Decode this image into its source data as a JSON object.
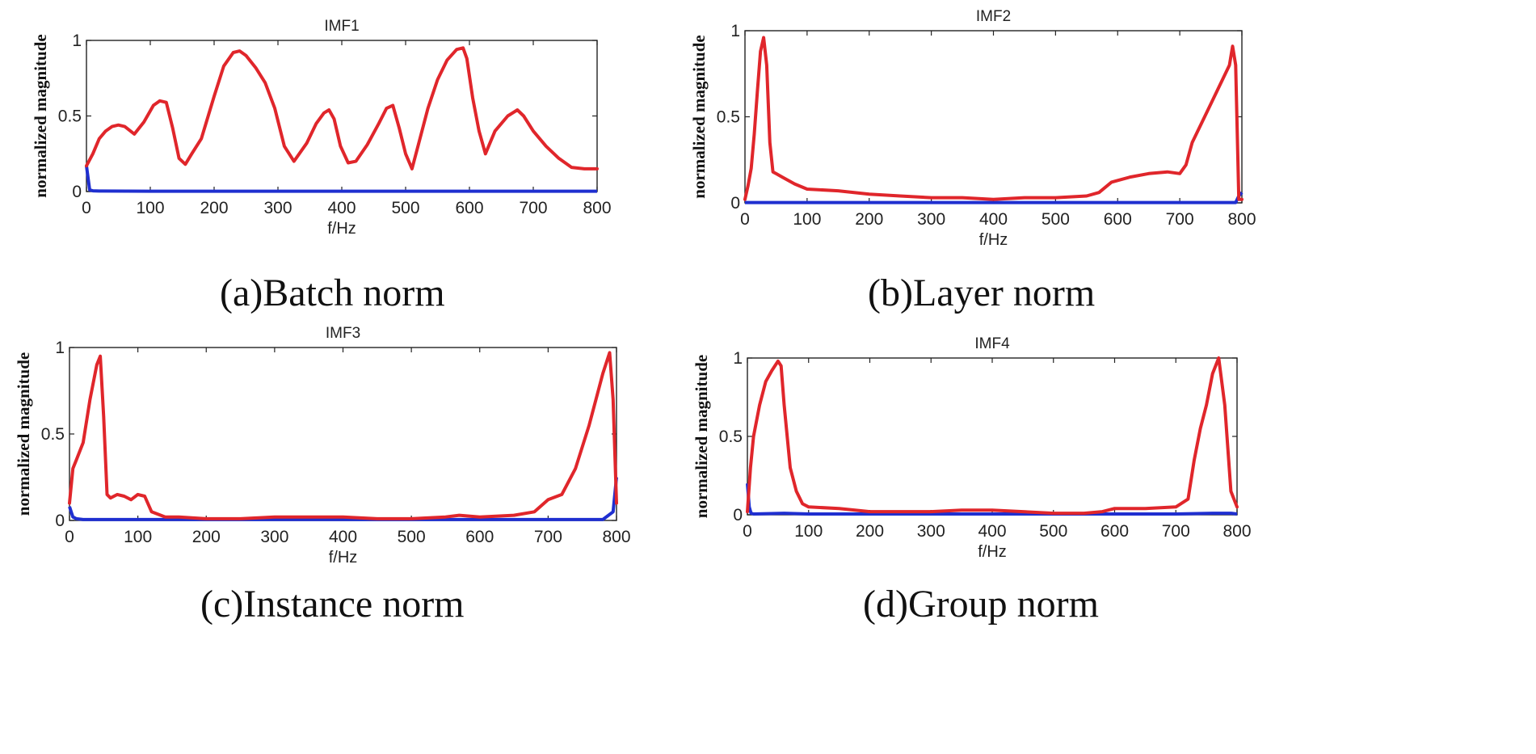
{
  "chart_data": [
    {
      "type": "line",
      "title": "IMF1",
      "caption": "(a)Batch norm",
      "xlabel": "f/Hz",
      "ylabel": "normalized magnitude",
      "xlim": [
        0,
        800
      ],
      "ylim": [
        0,
        1
      ],
      "xticks": [
        "0",
        "100",
        "200",
        "300",
        "400",
        "500",
        "600",
        "700",
        "800"
      ],
      "yticks": [
        "0",
        "0.5",
        "1"
      ],
      "series": [
        {
          "color": "#e0262b",
          "x": [
            0,
            10,
            20,
            30,
            40,
            50,
            60,
            75,
            90,
            105,
            115,
            125,
            135,
            145,
            155,
            165,
            180,
            200,
            215,
            230,
            240,
            250,
            265,
            280,
            295,
            310,
            325,
            345,
            360,
            372,
            380,
            388,
            398,
            410,
            422,
            440,
            458,
            470,
            480,
            490,
            500,
            510,
            520,
            535,
            550,
            565,
            580,
            590,
            596,
            605,
            615,
            625,
            640,
            660,
            675,
            685,
            700,
            720,
            740,
            760,
            780,
            800
          ],
          "y": [
            0.17,
            0.25,
            0.35,
            0.4,
            0.43,
            0.44,
            0.43,
            0.38,
            0.46,
            0.57,
            0.6,
            0.59,
            0.42,
            0.22,
            0.18,
            0.25,
            0.35,
            0.63,
            0.83,
            0.92,
            0.93,
            0.9,
            0.82,
            0.72,
            0.55,
            0.3,
            0.2,
            0.32,
            0.45,
            0.52,
            0.54,
            0.48,
            0.3,
            0.19,
            0.2,
            0.31,
            0.45,
            0.55,
            0.57,
            0.42,
            0.25,
            0.15,
            0.31,
            0.55,
            0.74,
            0.87,
            0.94,
            0.95,
            0.88,
            0.62,
            0.4,
            0.25,
            0.4,
            0.5,
            0.54,
            0.5,
            0.4,
            0.3,
            0.22,
            0.16,
            0.15,
            0.15
          ]
        },
        {
          "color": "#1f2fd0",
          "x": [
            0,
            5,
            10,
            20,
            100,
            200,
            300,
            400,
            500,
            600,
            700,
            790,
            800
          ],
          "y": [
            0.17,
            0.01,
            0.005,
            0.003,
            0.002,
            0.002,
            0.002,
            0.002,
            0.002,
            0.002,
            0.002,
            0.002,
            0.002
          ]
        }
      ]
    },
    {
      "type": "line",
      "title": "IMF2",
      "caption": "(b)Layer norm",
      "xlabel": "f/Hz",
      "ylabel": "normalized magnitude",
      "xlim": [
        0,
        800
      ],
      "ylim": [
        0,
        1
      ],
      "xticks": [
        "0",
        "100",
        "200",
        "300",
        "400",
        "500",
        "600",
        "700",
        "800"
      ],
      "yticks": [
        "0",
        "0.5",
        "1"
      ],
      "series": [
        {
          "color": "#e0262b",
          "x": [
            0,
            5,
            10,
            15,
            20,
            25,
            30,
            35,
            40,
            45,
            50,
            60,
            80,
            100,
            150,
            200,
            250,
            300,
            350,
            400,
            450,
            500,
            550,
            570,
            590,
            600,
            620,
            650,
            680,
            700,
            710,
            720,
            740,
            760,
            780,
            785,
            790,
            795,
            800
          ],
          "y": [
            0.02,
            0.1,
            0.2,
            0.4,
            0.65,
            0.88,
            0.96,
            0.8,
            0.35,
            0.18,
            0.17,
            0.15,
            0.11,
            0.08,
            0.07,
            0.05,
            0.04,
            0.03,
            0.03,
            0.02,
            0.03,
            0.03,
            0.04,
            0.06,
            0.12,
            0.13,
            0.15,
            0.17,
            0.18,
            0.17,
            0.22,
            0.35,
            0.5,
            0.65,
            0.8,
            0.91,
            0.8,
            0.02,
            0.02
          ]
        },
        {
          "color": "#1f2fd0",
          "x": [
            0,
            10,
            50,
            100,
            200,
            300,
            400,
            500,
            600,
            700,
            790,
            795,
            800
          ],
          "y": [
            0.002,
            0.002,
            0.002,
            0.002,
            0.002,
            0.002,
            0.002,
            0.002,
            0.002,
            0.002,
            0.002,
            0.04,
            0.06
          ]
        }
      ]
    },
    {
      "type": "line",
      "title": "IMF3",
      "caption": "(c)Instance norm",
      "xlabel": "f/Hz",
      "ylabel": "normalized magnitude",
      "xlim": [
        0,
        800
      ],
      "ylim": [
        0,
        1
      ],
      "xticks": [
        "0",
        "100",
        "200",
        "300",
        "400",
        "500",
        "600",
        "700",
        "800"
      ],
      "yticks": [
        "0",
        "0.5",
        "1"
      ],
      "series": [
        {
          "color": "#e0262b",
          "x": [
            0,
            5,
            10,
            20,
            30,
            40,
            45,
            50,
            55,
            60,
            70,
            80,
            90,
            100,
            110,
            120,
            140,
            160,
            200,
            250,
            300,
            350,
            400,
            450,
            500,
            550,
            570,
            600,
            650,
            680,
            700,
            720,
            740,
            760,
            780,
            790,
            795,
            800
          ],
          "y": [
            0.1,
            0.3,
            0.35,
            0.45,
            0.7,
            0.9,
            0.95,
            0.6,
            0.15,
            0.13,
            0.15,
            0.14,
            0.12,
            0.15,
            0.14,
            0.05,
            0.02,
            0.02,
            0.01,
            0.01,
            0.02,
            0.02,
            0.02,
            0.01,
            0.01,
            0.02,
            0.03,
            0.02,
            0.03,
            0.05,
            0.12,
            0.15,
            0.3,
            0.55,
            0.85,
            0.97,
            0.7,
            0.1
          ]
        },
        {
          "color": "#1f2fd0",
          "x": [
            0,
            5,
            10,
            20,
            100,
            200,
            300,
            400,
            500,
            600,
            700,
            760,
            780,
            795,
            800
          ],
          "y": [
            0.08,
            0.02,
            0.01,
            0.005,
            0.005,
            0.005,
            0.005,
            0.005,
            0.005,
            0.005,
            0.005,
            0.005,
            0.005,
            0.05,
            0.25
          ]
        }
      ]
    },
    {
      "type": "line",
      "title": "IMF4",
      "caption": "(d)Group norm",
      "xlabel": "f/Hz",
      "ylabel": "normalized magnitude",
      "xlim": [
        0,
        800
      ],
      "ylim": [
        0,
        1
      ],
      "xticks": [
        "0",
        "100",
        "200",
        "300",
        "400",
        "500",
        "600",
        "700",
        "800"
      ],
      "yticks": [
        "0",
        "0.5",
        "1"
      ],
      "series": [
        {
          "color": "#e0262b",
          "x": [
            0,
            5,
            10,
            20,
            30,
            40,
            50,
            55,
            60,
            70,
            80,
            90,
            100,
            150,
            200,
            250,
            300,
            350,
            400,
            450,
            500,
            550,
            580,
            600,
            650,
            700,
            720,
            730,
            740,
            750,
            760,
            770,
            780,
            790,
            800
          ],
          "y": [
            0.02,
            0.3,
            0.5,
            0.7,
            0.85,
            0.92,
            0.98,
            0.95,
            0.7,
            0.3,
            0.15,
            0.07,
            0.05,
            0.04,
            0.02,
            0.02,
            0.02,
            0.03,
            0.03,
            0.02,
            0.01,
            0.01,
            0.02,
            0.04,
            0.04,
            0.05,
            0.1,
            0.35,
            0.55,
            0.7,
            0.9,
            1.0,
            0.7,
            0.15,
            0.05
          ]
        },
        {
          "color": "#1f2fd0",
          "x": [
            0,
            3,
            6,
            10,
            60,
            100,
            200,
            300,
            400,
            500,
            600,
            700,
            760,
            790,
            800
          ],
          "y": [
            0.2,
            0.05,
            0.01,
            0.005,
            0.01,
            0.005,
            0.005,
            0.005,
            0.005,
            0.005,
            0.005,
            0.005,
            0.01,
            0.01,
            0.005
          ]
        }
      ]
    }
  ]
}
